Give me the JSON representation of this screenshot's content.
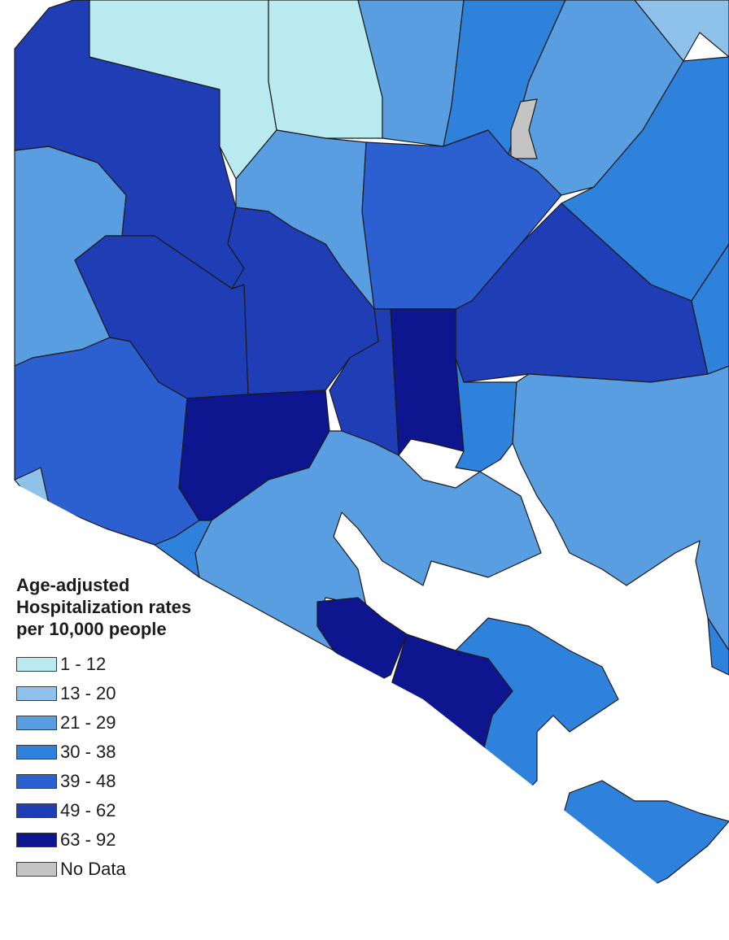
{
  "legend": {
    "title_lines": [
      "Age-adjusted",
      "Hospitalization rates",
      "per 10,000 people"
    ],
    "classes": [
      {
        "label": "1 - 12",
        "color": "#b8eaf0"
      },
      {
        "label": "13 - 20",
        "color": "#8ec2ea"
      },
      {
        "label": "21 - 29",
        "color": "#5a9ee2"
      },
      {
        "label": "30 - 38",
        "color": "#2f82dc"
      },
      {
        "label": "39 - 48",
        "color": "#2c5fd0"
      },
      {
        "label": "49 - 62",
        "color": "#1f3db4"
      },
      {
        "label": "63 - 92",
        "color": "#0d168e"
      },
      {
        "label": "No Data",
        "color": "#c4c4c4"
      }
    ]
  }
}
